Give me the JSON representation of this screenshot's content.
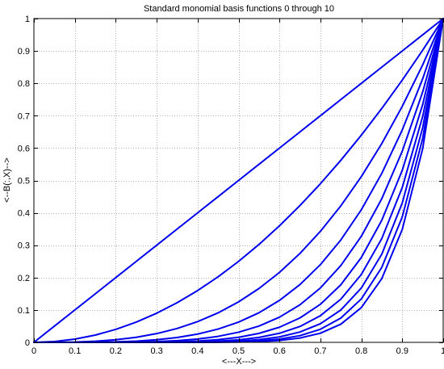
{
  "chart_data": {
    "type": "line",
    "title": "Standard monomial basis functions 0 through 10",
    "xlabel": "<---X--->",
    "ylabel": "<--B(:,X)-->",
    "xlim": [
      0,
      1
    ],
    "ylim": [
      0,
      1
    ],
    "grid": true,
    "x_ticks": [
      "0",
      "0.1",
      "0.2",
      "0.3",
      "0.4",
      "0.5",
      "0.6",
      "0.7",
      "0.8",
      "0.9",
      "1"
    ],
    "y_ticks": [
      "0",
      "0.1",
      "0.2",
      "0.3",
      "0.4",
      "0.5",
      "0.6",
      "0.7",
      "0.8",
      "0.9",
      "1"
    ],
    "line_color": "#0000ee",
    "x": [
      0,
      0.05,
      0.1,
      0.15,
      0.2,
      0.25,
      0.3,
      0.35,
      0.4,
      0.45,
      0.5,
      0.55,
      0.6,
      0.65,
      0.7,
      0.75,
      0.8,
      0.85,
      0.9,
      0.95,
      1
    ],
    "series": [
      {
        "values": [
          1,
          1,
          1,
          1,
          1,
          1,
          1,
          1,
          1,
          1,
          1,
          1,
          1,
          1,
          1,
          1,
          1,
          1,
          1,
          1,
          1
        ]
      },
      {
        "values": [
          0,
          0.05,
          0.1,
          0.15,
          0.2,
          0.25,
          0.3,
          0.35,
          0.4,
          0.45,
          0.5,
          0.55,
          0.6,
          0.65,
          0.7,
          0.75,
          0.8,
          0.85,
          0.9,
          0.95,
          1
        ]
      },
      {
        "values": [
          0,
          0.0025,
          0.01,
          0.0225,
          0.04,
          0.0625,
          0.09,
          0.1225,
          0.16,
          0.2025,
          0.25,
          0.3025,
          0.36,
          0.4225,
          0.49,
          0.5625,
          0.64,
          0.7225,
          0.81,
          0.9025,
          1
        ]
      },
      {
        "values": [
          0,
          0.0001,
          0.001,
          0.0034,
          0.008,
          0.0156,
          0.027,
          0.0429,
          0.064,
          0.0911,
          0.125,
          0.1664,
          0.216,
          0.2746,
          0.343,
          0.4219,
          0.512,
          0.6141,
          0.729,
          0.8574,
          1
        ]
      },
      {
        "values": [
          0,
          0,
          0.0001,
          0.0005,
          0.0016,
          0.0039,
          0.0081,
          0.015,
          0.0256,
          0.041,
          0.0625,
          0.0915,
          0.1296,
          0.1785,
          0.2401,
          0.3164,
          0.4096,
          0.522,
          0.6561,
          0.8145,
          1
        ]
      },
      {
        "values": [
          0,
          0,
          0,
          0.0001,
          0.0003,
          0.001,
          0.0024,
          0.0053,
          0.0102,
          0.0185,
          0.0313,
          0.0503,
          0.0778,
          0.116,
          0.1681,
          0.2373,
          0.3277,
          0.4437,
          0.5905,
          0.7738,
          1
        ]
      },
      {
        "values": [
          0,
          0,
          0,
          0,
          0.0001,
          0.0002,
          0.0007,
          0.0018,
          0.0041,
          0.0083,
          0.0156,
          0.0277,
          0.0467,
          0.0754,
          0.1176,
          0.178,
          0.2621,
          0.3771,
          0.5314,
          0.7351,
          1
        ]
      },
      {
        "values": [
          0,
          0,
          0,
          0,
          0,
          0.0001,
          0.0002,
          0.0006,
          0.0016,
          0.0037,
          0.0078,
          0.0152,
          0.028,
          0.049,
          0.0824,
          0.1335,
          0.2097,
          0.3206,
          0.4783,
          0.6983,
          1
        ]
      },
      {
        "values": [
          0,
          0,
          0,
          0,
          0,
          0,
          0.0001,
          0.0002,
          0.0007,
          0.0017,
          0.0039,
          0.0084,
          0.0168,
          0.0319,
          0.0576,
          0.1001,
          0.1678,
          0.2725,
          0.4305,
          0.6634,
          1
        ]
      },
      {
        "values": [
          0,
          0,
          0,
          0,
          0,
          0,
          0,
          0.0001,
          0.0003,
          0.0008,
          0.002,
          0.0046,
          0.0101,
          0.0207,
          0.0404,
          0.0751,
          0.1342,
          0.2316,
          0.3874,
          0.6302,
          1
        ]
      },
      {
        "values": [
          0,
          0,
          0,
          0,
          0,
          0,
          0,
          0,
          0.0001,
          0.0003,
          0.001,
          0.0025,
          0.006,
          0.0135,
          0.0282,
          0.0563,
          0.1074,
          0.1969,
          0.3487,
          0.5987,
          1
        ]
      }
    ]
  }
}
